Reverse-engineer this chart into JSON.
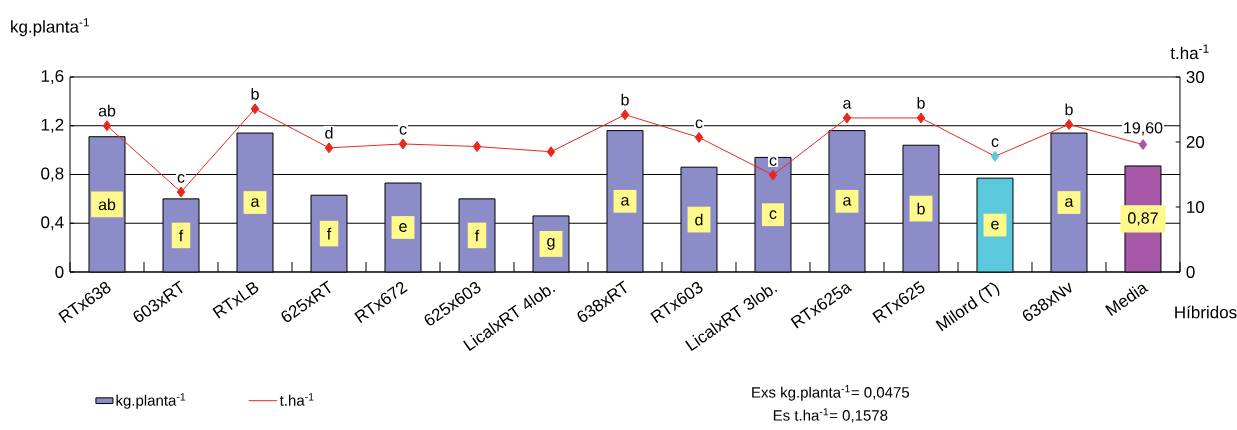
{
  "chart_data": {
    "type": "bar",
    "xlabel": "Híbridos",
    "ylabel": "kg.planta$^{-1}$",
    "y2label": "t.ha$^{-1}$",
    "categories": [
      "RTx638",
      "603xRT",
      "RTxLB",
      "625xRT",
      "RTx672",
      "625x603",
      "LicalxRT 4lob.",
      "638xRT",
      "RTx603",
      "LicalxRT 3lob.",
      "RTx625a",
      "RTx625",
      "Milord (T)",
      "638xNv",
      "Media"
    ],
    "series": [
      {
        "name": "kg.planta$^{-1}$",
        "color": "#8c8cc8",
        "colors": [
          "#8c8cc8",
          "#8c8cc8",
          "#8c8cc8",
          "#8c8cc8",
          "#8c8cc8",
          "#8c8cc8",
          "#8c8cc8",
          "#8c8cc8",
          "#8c8cc8",
          "#8c8cc8",
          "#8c8cc8",
          "#8c8cc8",
          "#5bc8dc",
          "#8c8cc8",
          "#a858a8"
        ],
        "values": [
          1.11,
          0.6,
          1.14,
          0.63,
          0.73,
          0.6,
          0.46,
          1.16,
          0.86,
          0.94,
          1.16,
          1.04,
          0.77,
          1.14,
          0.87
        ],
        "value_labels": [
          "ab",
          "f",
          "a",
          "f",
          "e",
          "f",
          "g",
          "a",
          "d",
          "c",
          "a",
          "b",
          "e",
          "a",
          "0,87"
        ]
      },
      {
        "name": "t.ha$^{-1}$",
        "type": "line",
        "axis": "y2",
        "color": "#e8281e",
        "colors": [
          "#e8281e",
          "#e8281e",
          "#e8281e",
          "#e8281e",
          "#e8281e",
          "#e8281e",
          "#e8281e",
          "#e8281e",
          "#e8281e",
          "#e8281e",
          "#e8281e",
          "#e8281e",
          "#5bc8dc",
          "#e8281e",
          "#a858a8"
        ],
        "values": [
          22.5,
          12.3,
          25.1,
          19.1,
          19.7,
          19.3,
          18.5,
          24.2,
          20.7,
          14.9,
          23.7,
          23.7,
          17.8,
          22.7,
          19.6
        ],
        "value_labels": [
          "ab",
          "c",
          "b",
          "d",
          "c",
          null,
          null,
          "b",
          "c",
          "c",
          "a",
          "b",
          "c",
          "b",
          "19,60"
        ]
      }
    ],
    "ylim": [
      0,
      1.6
    ],
    "yticks": [
      0,
      {
        "value": 0.4,
        "label": "0,4"
      },
      {
        "value": 0.8,
        "label": "0,8"
      },
      {
        "value": 1.2,
        "label": "1,2"
      },
      {
        "value": 1.6,
        "label": "1,6"
      }
    ],
    "y2lim": [
      0,
      30
    ],
    "y2ticks": [
      0,
      10,
      20,
      30
    ],
    "grid": "y",
    "legend": "bottom",
    "marker": "diamond",
    "annotations": [
      "Exs kg.planta$^{-1}$= 0,0475",
      "Es t.ha$^{-1}$= 0,1578"
    ]
  }
}
